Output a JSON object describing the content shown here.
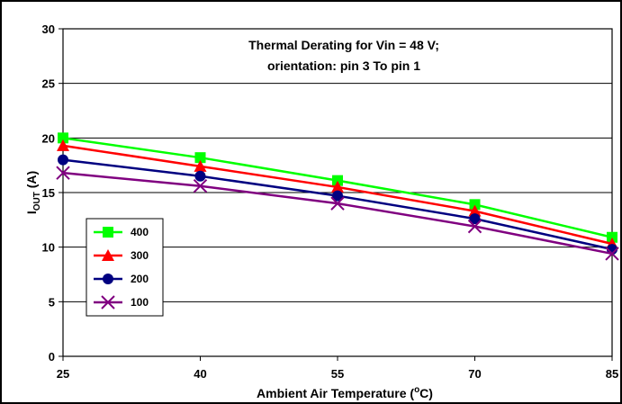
{
  "chart_data": {
    "type": "line",
    "title": [
      "Thermal Derating for Vin = 48 V;",
      "orientation:  pin 3 To pin 1"
    ],
    "xlabel": {
      "main": "Ambient Air Temperature (",
      "sup": "o",
      "tail": "C)"
    },
    "ylabel": {
      "main": "I",
      "sub": "OUT",
      "tail": " (A)"
    },
    "x": [
      25,
      40,
      55,
      70,
      85
    ],
    "xlim": [
      25,
      85
    ],
    "ylim": [
      0,
      30
    ],
    "yticks": [
      0,
      5,
      10,
      15,
      20,
      25,
      30
    ],
    "grid": "horizontal",
    "legend_position": "left-bottom",
    "series": [
      {
        "name": "400",
        "color": "#00ff00",
        "marker": "square",
        "values": [
          20.0,
          18.2,
          16.1,
          13.9,
          10.9
        ]
      },
      {
        "name": "300",
        "color": "#ff0000",
        "marker": "triangle",
        "values": [
          19.3,
          17.4,
          15.5,
          13.3,
          10.3
        ]
      },
      {
        "name": "200",
        "color": "#000080",
        "marker": "circle",
        "values": [
          18.0,
          16.5,
          14.7,
          12.6,
          9.8
        ]
      },
      {
        "name": "100",
        "color": "#800080",
        "marker": "x",
        "values": [
          16.8,
          15.6,
          14.0,
          11.9,
          9.4
        ]
      }
    ]
  }
}
